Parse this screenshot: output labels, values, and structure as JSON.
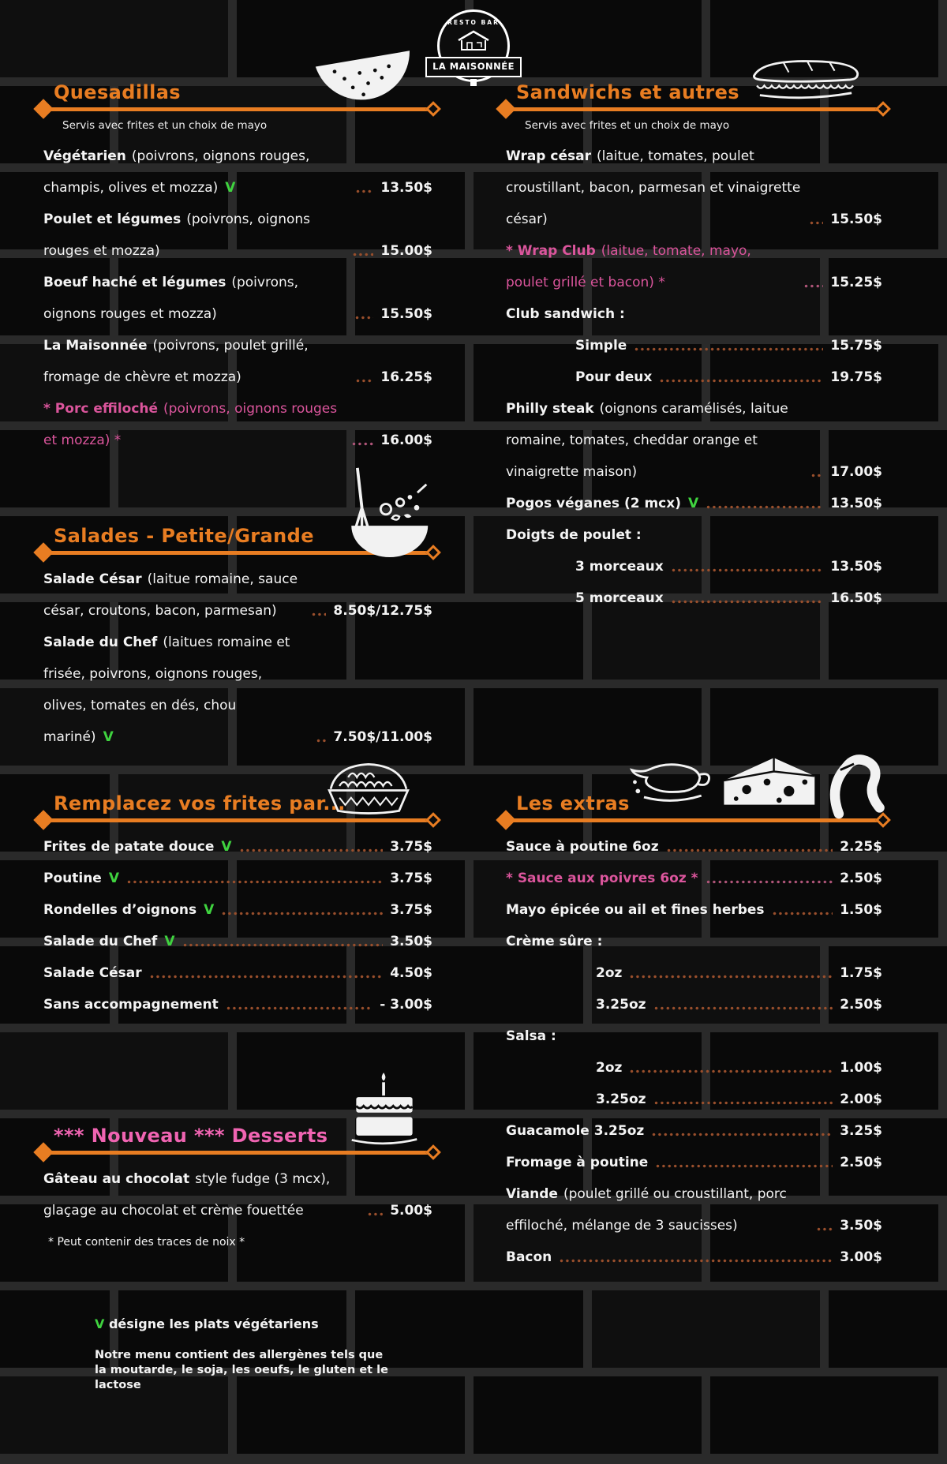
{
  "colors": {
    "accent_orange": "#e87d22",
    "item_pink": "#db559c",
    "desserts_pink": "#f064b2",
    "veg_green": "#3fd33f",
    "leader_dot": "#9a4f2c",
    "leader_dot_pink": "#b05579"
  },
  "logo": {
    "tagline_top": "RESTO BAR",
    "name": "LA MAISONNÉE"
  },
  "quesadillas": {
    "title": "Quesadillas",
    "subtitle": "Servis avec frites et un choix de mayo",
    "items": [
      {
        "name": "Végétarien",
        "desc": "(poivrons, oignons rouges, champis, olives et mozza)",
        "veg": "V",
        "price": "13.50$"
      },
      {
        "name": "Poulet et légumes",
        "desc": "(poivrons, oignons rouges et mozza)",
        "price": "15.00$"
      },
      {
        "name": "Boeuf haché et légumes",
        "desc": "(poivrons, oignons rouges et mozza)",
        "price": "15.50$"
      },
      {
        "name": "La Maisonnée",
        "desc": "(poivrons, poulet grillé, fromage de chèvre et mozza)",
        "price": "16.25$"
      },
      {
        "name": "* Porc effiloché",
        "desc": "(poivrons, oignons rouges et mozza) *",
        "price": "16.00$"
      }
    ]
  },
  "sandwichs": {
    "title": "Sandwichs et autres",
    "subtitle": "Servis avec frites et un choix de mayo",
    "items": [
      {
        "name": "Wrap césar",
        "desc": "(laitue, tomates, poulet croustillant, bacon, parmesan et vinaigrette césar)",
        "price": "15.50$"
      },
      {
        "name": "* Wrap Club",
        "desc": "(laitue, tomate, mayo, poulet grillé et bacon) *",
        "price": "15.25$"
      },
      {
        "name": "Club sandwich :"
      },
      {
        "name": "Simple",
        "price": "15.75$"
      },
      {
        "name": "Pour deux",
        "price": "19.75$"
      },
      {
        "name": "Philly steak",
        "desc": "(oignons caramélisés, laitue romaine, tomates, cheddar orange et vinaigrette maison)",
        "price": "17.00$"
      },
      {
        "name": "Pogos véganes (2 mcx)",
        "veg": "V",
        "price": "13.50$"
      },
      {
        "name": "Doigts de poulet :"
      },
      {
        "name": "3 morceaux",
        "price": "13.50$"
      },
      {
        "name": "5 morceaux",
        "price": "16.50$"
      }
    ]
  },
  "salades": {
    "title": "Salades - Petite/Grande",
    "items": [
      {
        "name": "Salade César",
        "desc": "(laitue romaine, sauce césar, croutons, bacon, parmesan)",
        "price": "8.50$/12.75$"
      },
      {
        "name": "Salade du Chef",
        "desc": "(laitues romaine et frisée, poivrons, oignons rouges, olives, tomates en dés, chou mariné)",
        "veg": "V",
        "price": "7.50$/11.00$"
      }
    ]
  },
  "remplacez": {
    "title": "Remplacez vos frites par...",
    "items": [
      {
        "name": "Frites de patate douce",
        "veg": "V",
        "price": "3.75$"
      },
      {
        "name": "Poutine",
        "veg": "V",
        "price": "3.75$"
      },
      {
        "name": "Rondelles d’oignons",
        "veg": "V",
        "price": "3.75$"
      },
      {
        "name": "Salade du Chef",
        "veg": "V",
        "price": "3.50$"
      },
      {
        "name": "Salade César",
        "price": "4.50$"
      },
      {
        "name": "Sans accompagnement",
        "price": "- 3.00$"
      }
    ]
  },
  "extras": {
    "title": "Les extras",
    "items": [
      {
        "name": "Sauce à poutine 6oz",
        "price": "2.25$"
      },
      {
        "prefix": "* ",
        "name": "Sauce aux poivres 6oz *",
        "price": "2.50$"
      },
      {
        "name": "Mayo épicée ou ail et fines herbes",
        "price": "1.50$"
      },
      {
        "name": "Crème sûre :"
      },
      {
        "name": "2oz",
        "price": "1.75$"
      },
      {
        "name": "3.25oz",
        "price": "2.50$"
      },
      {
        "name": "Salsa :"
      },
      {
        "name": "2oz",
        "price": "1.00$"
      },
      {
        "name": "3.25oz",
        "price": "2.00$"
      },
      {
        "name": "Guacamole 3.25oz",
        "price": "3.25$"
      },
      {
        "name": "Fromage à poutine",
        "price": "2.50$"
      },
      {
        "name": "Viande",
        "desc": "(poulet grillé ou croustillant, porc effiloché, mélange de 3 saucisses)",
        "price": "3.50$"
      },
      {
        "name": "Bacon",
        "price": "3.00$"
      }
    ]
  },
  "desserts": {
    "title": "*** Nouveau *** Desserts",
    "items": [
      {
        "name": "Gâteau au chocolat",
        "desc": "style fudge (3 mcx), glaçage au chocolat et crème fouettée",
        "price": "5.00$"
      }
    ],
    "note": "* Peut contenir des traces de noix *"
  },
  "footer": {
    "veg_symbol": "V",
    "veg_text": "désigne les plats végétariens",
    "allergens": "Notre menu contient des allergènes tels que la moutarde, le soja, les oeufs, le gluten et le lactose"
  }
}
